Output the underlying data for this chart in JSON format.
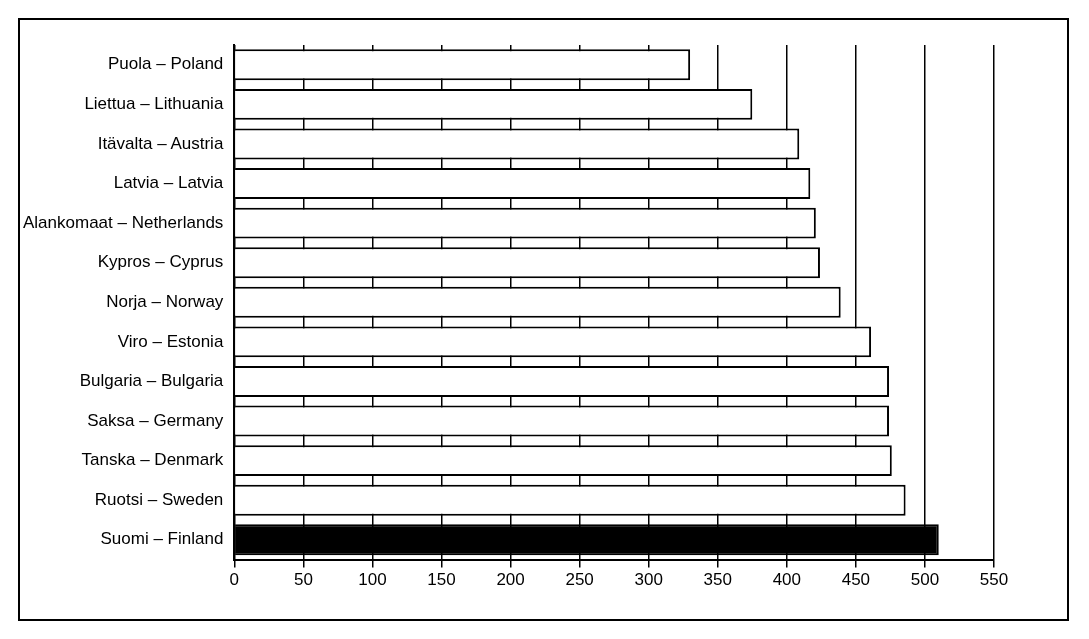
{
  "chart_data": {
    "type": "bar",
    "orientation": "horizontal",
    "categories": [
      "Puola – Poland",
      "Liettua – Lithuania",
      "Itävalta – Austria",
      "Latvia – Latvia",
      "Alankomaat – Netherlands",
      "Kypros – Cyprus",
      "Norja – Norway",
      "Viro – Estonia",
      "Bulgaria – Bulgaria",
      "Saksa – Germany",
      "Tanska – Denmark",
      "Ruotsi – Sweden",
      "Suomi – Finland"
    ],
    "values": [
      330,
      375,
      409,
      417,
      421,
      424,
      439,
      461,
      474,
      474,
      476,
      486,
      510
    ],
    "colors": [
      "#ffffff",
      "#ffffff",
      "#ffffff",
      "#ffffff",
      "#ffffff",
      "#ffffff",
      "#ffffff",
      "#ffffff",
      "#ffffff",
      "#ffffff",
      "#ffffff",
      "#ffffff",
      "#000000"
    ],
    "xlim": [
      0,
      550
    ],
    "xticks": [
      0,
      50,
      100,
      150,
      200,
      250,
      300,
      350,
      400,
      450,
      500,
      550
    ],
    "grid": "x",
    "legend": false
  }
}
